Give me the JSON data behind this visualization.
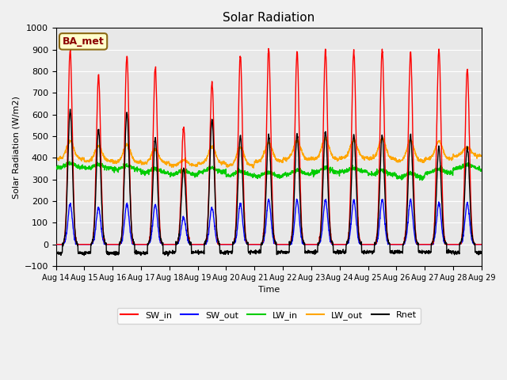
{
  "title": "Solar Radiation",
  "ylabel": "Solar Radiation (W/m2)",
  "xlabel": "Time",
  "ylim": [
    -100,
    1000
  ],
  "yticks": [
    -100,
    0,
    100,
    200,
    300,
    400,
    500,
    600,
    700,
    800,
    900,
    1000
  ],
  "plot_bg_color": "#e8e8e8",
  "fig_bg_color": "#f0f0f0",
  "series": {
    "SW_in": {
      "color": "#ff0000",
      "lw": 1.0
    },
    "SW_out": {
      "color": "#0000ff",
      "lw": 1.0
    },
    "LW_in": {
      "color": "#00cc00",
      "lw": 1.0
    },
    "LW_out": {
      "color": "#ffa500",
      "lw": 1.0
    },
    "Rnet": {
      "color": "#000000",
      "lw": 1.0
    }
  },
  "label_box": "BA_met",
  "n_days": 15,
  "pts_per_day": 144,
  "SW_in_peaks": [
    900,
    780,
    870,
    820,
    540,
    750,
    870,
    900,
    890,
    895,
    895,
    900,
    890,
    905,
    810
  ],
  "SW_out_peaks": [
    185,
    170,
    185,
    185,
    125,
    170,
    185,
    205,
    205,
    205,
    205,
    205,
    205,
    190,
    190
  ],
  "LW_in_base": [
    355,
    350,
    345,
    330,
    322,
    333,
    318,
    313,
    323,
    333,
    333,
    322,
    308,
    328,
    348
  ],
  "LW_out_base": [
    395,
    385,
    380,
    375,
    365,
    375,
    365,
    385,
    395,
    395,
    400,
    395,
    385,
    395,
    410
  ],
  "LW_out_peaks": [
    480,
    455,
    460,
    440,
    390,
    450,
    450,
    470,
    480,
    490,
    480,
    490,
    480,
    475,
    450
  ],
  "Rnet_peaks": [
    620,
    530,
    610,
    490,
    350,
    580,
    500,
    505,
    510,
    520,
    505,
    505,
    505,
    450,
    455
  ],
  "Rnet_night": [
    -40,
    -40,
    -40,
    -40,
    -35,
    -38,
    -35,
    -35,
    -35,
    -35,
    -35,
    -35,
    -35,
    -35,
    -38
  ]
}
